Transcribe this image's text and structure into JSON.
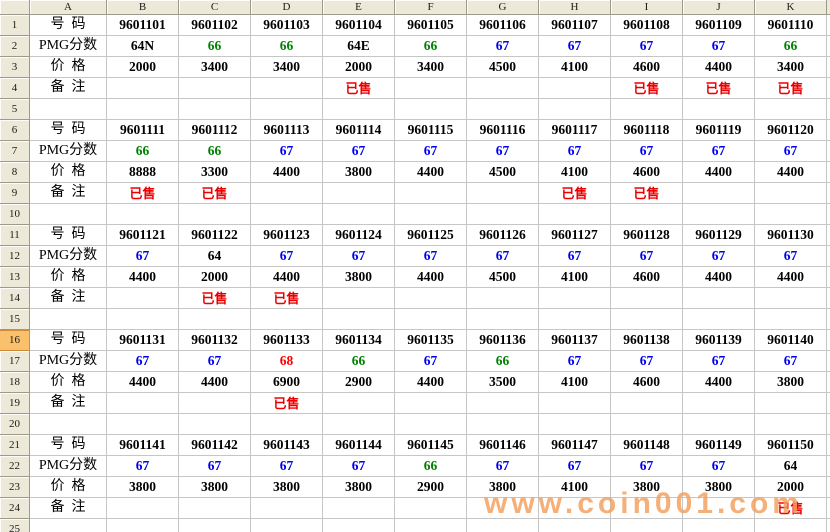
{
  "colors": {
    "black": "#000000",
    "green": "#008000",
    "blue": "#0000EE",
    "red": "#FF0000",
    "note_red": "#EE0000",
    "watermark_orange": "#F39E5A",
    "header_bg": "#ECE9D8",
    "selected_row_bg": "#FBC06C",
    "gridline": "#C6C6C6"
  },
  "watermark": {
    "text": "www.coin001.com"
  },
  "sheet": {
    "column_headers": [
      "A",
      "B",
      "C",
      "D",
      "E",
      "F",
      "G",
      "H",
      "I",
      "J",
      "K"
    ],
    "visible_rows": 25,
    "selected_row": 16,
    "row_labels": {
      "number": "号  码",
      "pmg": "PMG分数",
      "price": "价  格",
      "note": "备  注"
    },
    "blocks": [
      {
        "numbers": [
          "9601101",
          "9601102",
          "9601103",
          "9601104",
          "9601105",
          "9601106",
          "9601107",
          "9601108",
          "9601109",
          "9601110"
        ],
        "pmg": [
          "64N",
          "66",
          "66",
          "64E",
          "66",
          "67",
          "67",
          "67",
          "67",
          "66"
        ],
        "pmg_colors": [
          "black",
          "green",
          "green",
          "black",
          "green",
          "blue",
          "blue",
          "blue",
          "blue",
          "green"
        ],
        "prices": [
          "2000",
          "3400",
          "3400",
          "2000",
          "3400",
          "4500",
          "4100",
          "4600",
          "4400",
          "3400"
        ],
        "notes": [
          "",
          "",
          "",
          "已售",
          "",
          "",
          "",
          "已售",
          "已售",
          "已售"
        ]
      },
      {
        "numbers": [
          "9601111",
          "9601112",
          "9601113",
          "9601114",
          "9601115",
          "9601116",
          "9601117",
          "9601118",
          "9601119",
          "9601120"
        ],
        "pmg": [
          "66",
          "66",
          "67",
          "67",
          "67",
          "67",
          "67",
          "67",
          "67",
          "67"
        ],
        "pmg_colors": [
          "green",
          "green",
          "blue",
          "blue",
          "blue",
          "blue",
          "blue",
          "blue",
          "blue",
          "blue"
        ],
        "prices": [
          "8888",
          "3300",
          "4400",
          "3800",
          "4400",
          "4500",
          "4100",
          "4600",
          "4400",
          "4400"
        ],
        "notes": [
          "已售",
          "已售",
          "",
          "",
          "",
          "",
          "已售",
          "已售",
          "",
          ""
        ]
      },
      {
        "numbers": [
          "9601121",
          "9601122",
          "9601123",
          "9601124",
          "9601125",
          "9601126",
          "9601127",
          "9601128",
          "9601129",
          "9601130"
        ],
        "pmg": [
          "67",
          "64",
          "67",
          "67",
          "67",
          "67",
          "67",
          "67",
          "67",
          "67"
        ],
        "pmg_colors": [
          "blue",
          "black",
          "blue",
          "blue",
          "blue",
          "blue",
          "blue",
          "blue",
          "blue",
          "blue"
        ],
        "prices": [
          "4400",
          "2000",
          "4400",
          "3800",
          "4400",
          "4500",
          "4100",
          "4600",
          "4400",
          "4400"
        ],
        "notes": [
          "",
          "已售",
          "已售",
          "",
          "",
          "",
          "",
          "",
          "",
          ""
        ]
      },
      {
        "numbers": [
          "9601131",
          "9601132",
          "9601133",
          "9601134",
          "9601135",
          "9601136",
          "9601137",
          "9601138",
          "9601139",
          "9601140"
        ],
        "pmg": [
          "67",
          "67",
          "68",
          "66",
          "67",
          "66",
          "67",
          "67",
          "67",
          "67"
        ],
        "pmg_colors": [
          "blue",
          "blue",
          "red",
          "green",
          "blue",
          "green",
          "blue",
          "blue",
          "blue",
          "blue"
        ],
        "prices": [
          "4400",
          "4400",
          "6900",
          "2900",
          "4400",
          "3500",
          "4100",
          "4600",
          "4400",
          "3800"
        ],
        "notes": [
          "",
          "",
          "已售",
          "",
          "",
          "",
          "",
          "",
          "",
          ""
        ]
      },
      {
        "numbers": [
          "9601141",
          "9601142",
          "9601143",
          "9601144",
          "9601145",
          "9601146",
          "9601147",
          "9601148",
          "9601149",
          "9601150"
        ],
        "pmg": [
          "67",
          "67",
          "67",
          "67",
          "66",
          "67",
          "67",
          "67",
          "67",
          "64"
        ],
        "pmg_colors": [
          "blue",
          "blue",
          "blue",
          "blue",
          "green",
          "blue",
          "blue",
          "blue",
          "blue",
          "black"
        ],
        "prices": [
          "3800",
          "3800",
          "3800",
          "3800",
          "2900",
          "3800",
          "4100",
          "3800",
          "3800",
          "2000"
        ],
        "notes": [
          "",
          "",
          "",
          "",
          "",
          "",
          "",
          "",
          "",
          "已售"
        ]
      }
    ]
  }
}
